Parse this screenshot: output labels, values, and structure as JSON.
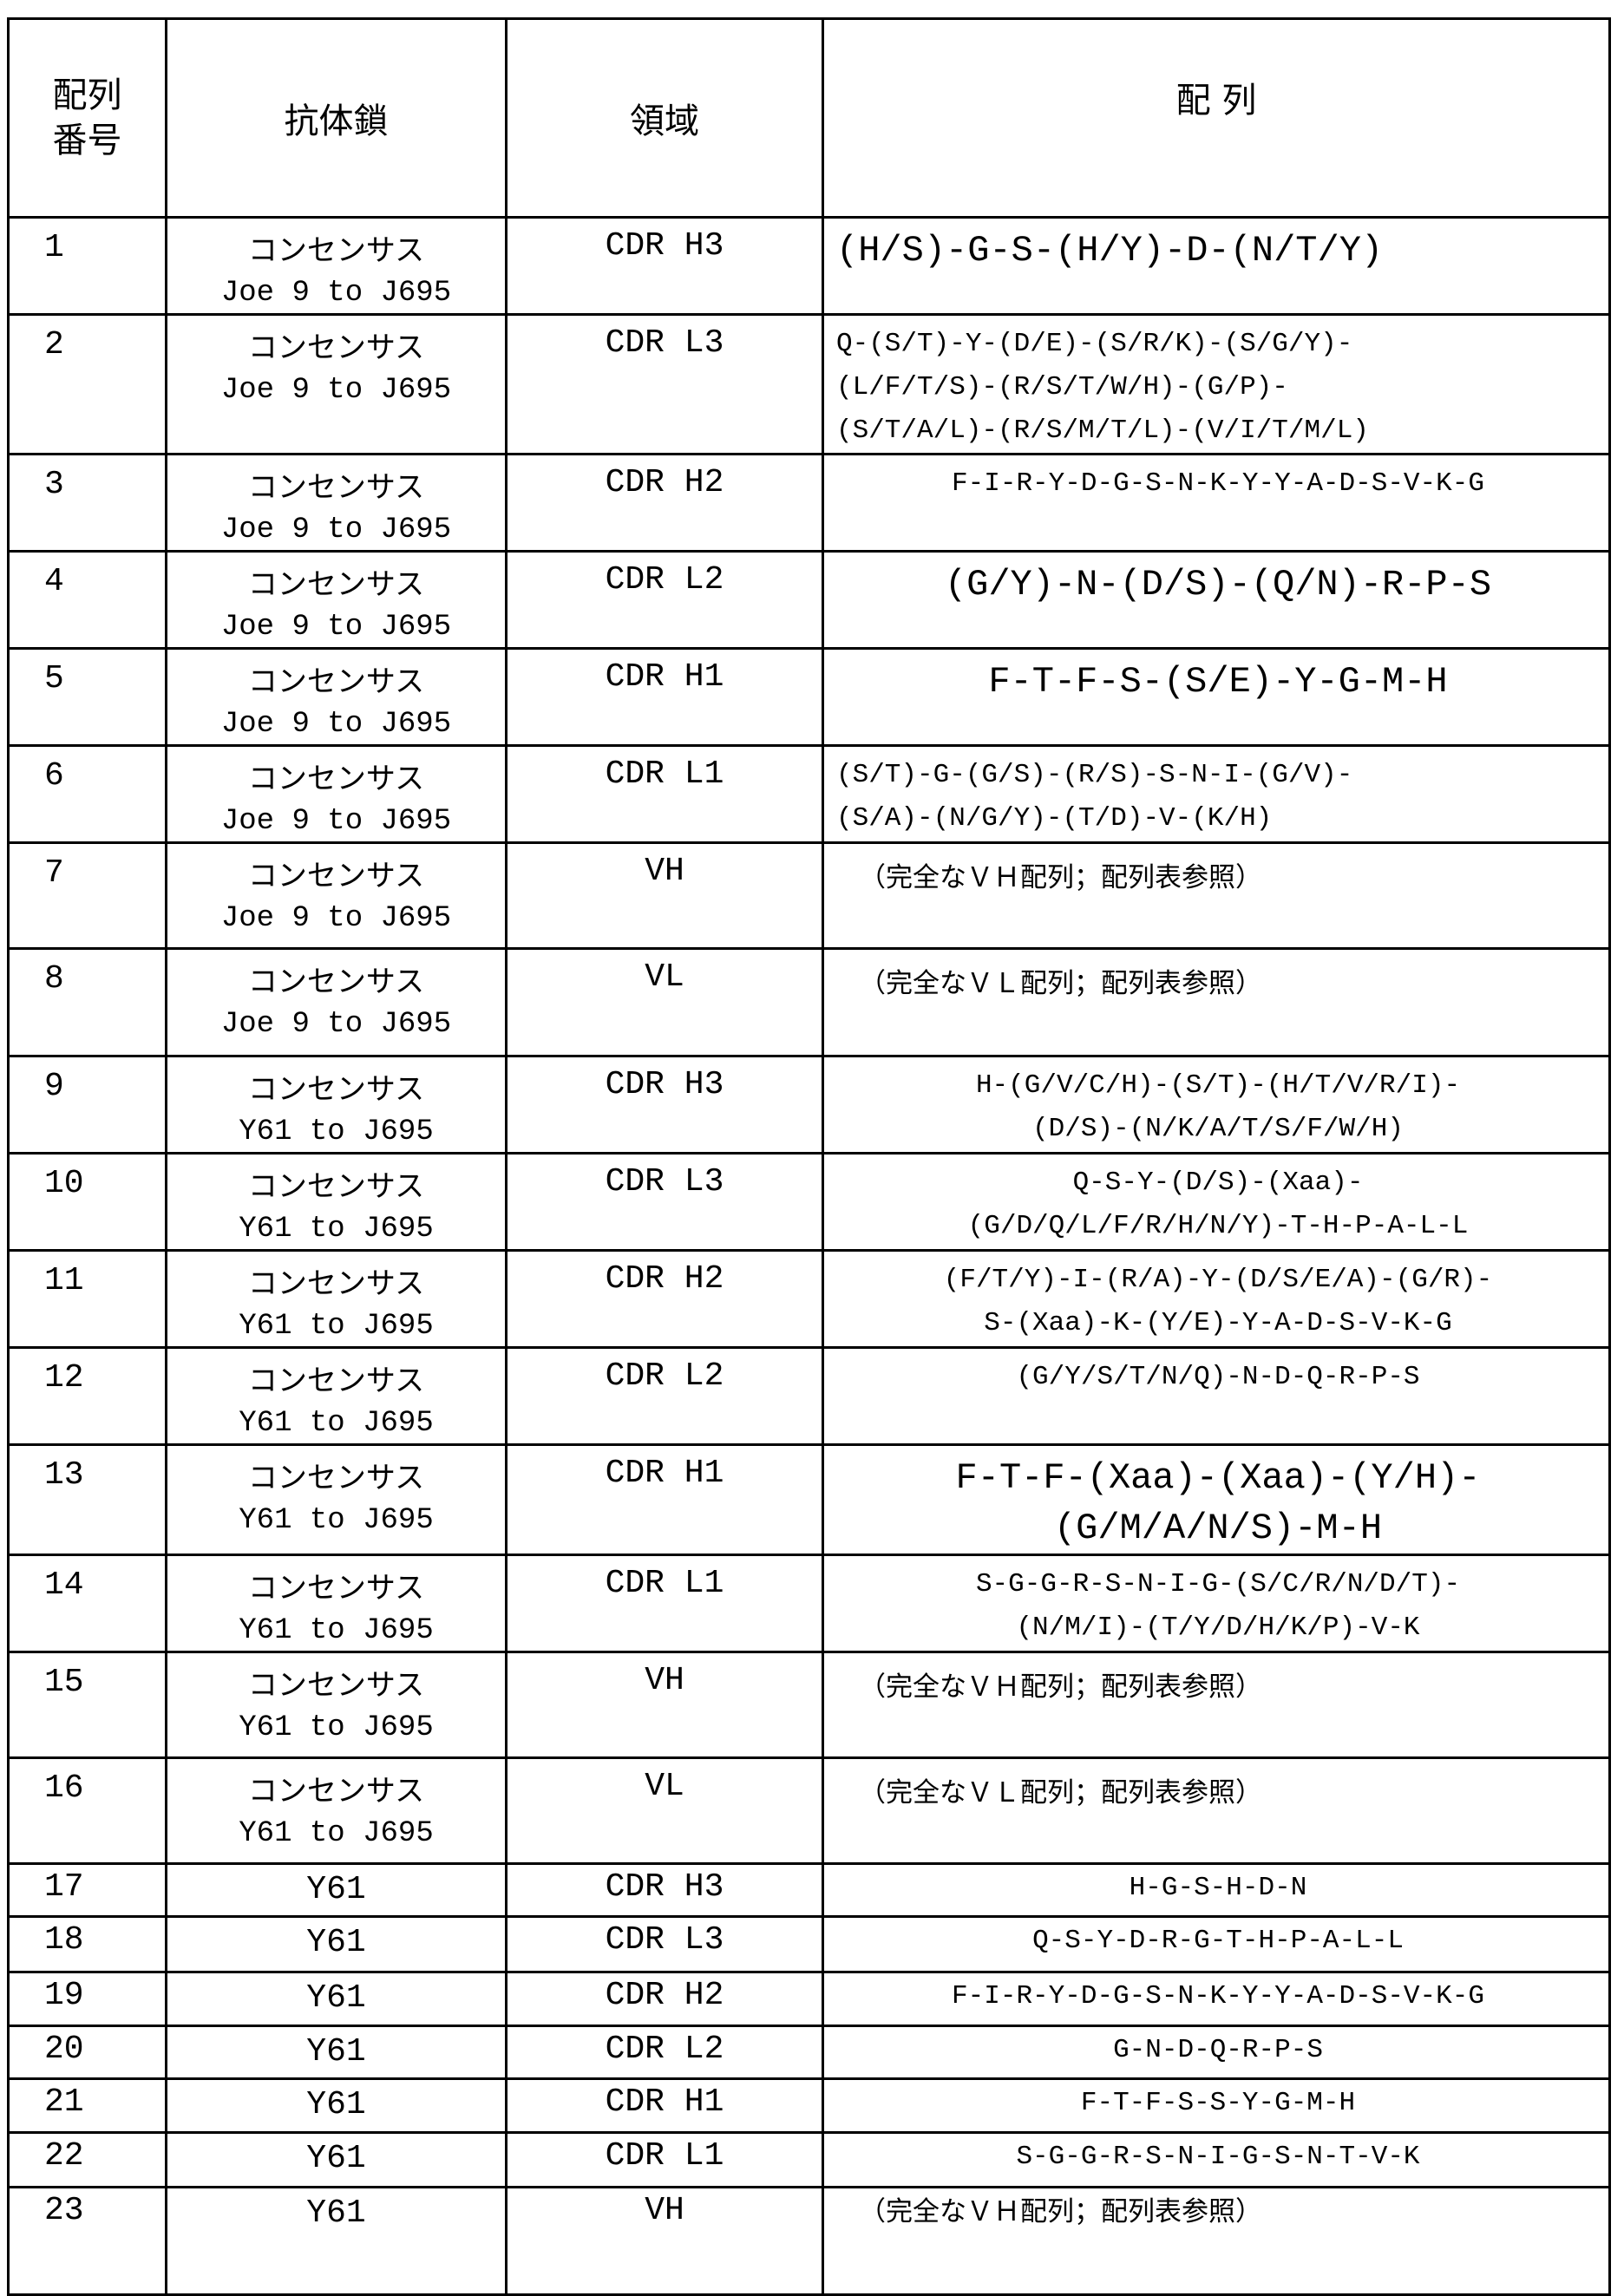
{
  "headers": {
    "seq_no": "配列\n番号",
    "chain": "抗体鎖",
    "region": "領域",
    "sequence": "配 列"
  },
  "rows": [
    {
      "no": "1",
      "chain": "コンセンサス",
      "chain2": "Joe 9 to J695",
      "region": "CDR H3",
      "seq": "(H/S)-G-S-(H/Y)-D-(N/T/Y)"
    },
    {
      "no": "2",
      "chain": "コンセンサス",
      "chain2": "Joe 9 to J695",
      "region": "CDR L3",
      "seq": "Q-(S/T)-Y-(D/E)-(S/R/K)-(S/G/Y)-\n(L/F/T/S)-(R/S/T/W/H)-(G/P)-\n(S/T/A/L)-(R/S/M/T/L)-(V/I/T/M/L)"
    },
    {
      "no": "3",
      "chain": "コンセンサス",
      "chain2": "Joe 9 to J695",
      "region": "CDR H2",
      "seq": "F-I-R-Y-D-G-S-N-K-Y-Y-A-D-S-V-K-G"
    },
    {
      "no": "4",
      "chain": "コンセンサス",
      "chain2": "Joe 9 to J695",
      "region": "CDR L2",
      "seq": "(G/Y)-N-(D/S)-(Q/N)-R-P-S"
    },
    {
      "no": "5",
      "chain": "コンセンサス",
      "chain2": "Joe 9 to J695",
      "region": "CDR H1",
      "seq": "F-T-F-S-(S/E)-Y-G-M-H"
    },
    {
      "no": "6",
      "chain": "コンセンサス",
      "chain2": "Joe 9 to J695",
      "region": "CDR L1",
      "seq": "(S/T)-G-(G/S)-(R/S)-S-N-I-(G/V)-\n(S/A)-(N/G/Y)-(T/D)-V-(K/H)"
    },
    {
      "no": "7",
      "chain": "コンセンサス",
      "chain2": "Joe 9 to J695",
      "region": "VH",
      "seq": "（完全なＶＨ配列；配列表参照）"
    },
    {
      "no": "8",
      "chain": "コンセンサス",
      "chain2": "Joe 9 to J695",
      "region": "VL",
      "seq": "（完全なＶＬ配列；配列表参照）"
    },
    {
      "no": "9",
      "chain": "コンセンサス",
      "chain2": "Y61 to J695",
      "region": "CDR H3",
      "seq": "H-(G/V/C/H)-(S/T)-(H/T/V/R/I)-\n(D/S)-(N/K/A/T/S/F/W/H)"
    },
    {
      "no": "10",
      "chain": "コンセンサス",
      "chain2": "Y61 to J695",
      "region": "CDR L3",
      "seq": "Q-S-Y-(D/S)-(Xaa)-\n(G/D/Q/L/F/R/H/N/Y)-T-H-P-A-L-L"
    },
    {
      "no": "11",
      "chain": "コンセンサス",
      "chain2": "Y61 to J695",
      "region": "CDR H2",
      "seq": "(F/T/Y)-I-(R/A)-Y-(D/S/E/A)-(G/R)-\nS-(Xaa)-K-(Y/E)-Y-A-D-S-V-K-G"
    },
    {
      "no": "12",
      "chain": "コンセンサス",
      "chain2": "Y61 to J695",
      "region": "CDR L2",
      "seq": "(G/Y/S/T/N/Q)-N-D-Q-R-P-S"
    },
    {
      "no": "13",
      "chain": "コンセンサス",
      "chain2": "Y61 to J695",
      "region": "CDR H1",
      "seq": "F-T-F-(Xaa)-(Xaa)-(Y/H)-\n(G/M/A/N/S)-M-H"
    },
    {
      "no": "14",
      "chain": "コンセンサス",
      "chain2": "Y61 to J695",
      "region": "CDR L1",
      "seq": "S-G-G-R-S-N-I-G-(S/C/R/N/D/T)-\n(N/M/I)-(T/Y/D/H/K/P)-V-K"
    },
    {
      "no": "15",
      "chain": "コンセンサス",
      "chain2": "Y61 to J695",
      "region": "VH",
      "seq": "（完全なＶＨ配列；配列表参照）"
    },
    {
      "no": "16",
      "chain": "コンセンサス",
      "chain2": "Y61 to J695",
      "region": "VL",
      "seq": "（完全なＶＬ配列；配列表参照）"
    },
    {
      "no": "17",
      "chain": "Y61",
      "chain2": "",
      "region": "CDR H3",
      "seq": "H-G-S-H-D-N"
    },
    {
      "no": "18",
      "chain": "Y61",
      "chain2": "",
      "region": "CDR L3",
      "seq": "Q-S-Y-D-R-G-T-H-P-A-L-L"
    },
    {
      "no": "19",
      "chain": "Y61",
      "chain2": "",
      "region": "CDR H2",
      "seq": "F-I-R-Y-D-G-S-N-K-Y-Y-A-D-S-V-K-G"
    },
    {
      "no": "20",
      "chain": "Y61",
      "chain2": "",
      "region": "CDR L2",
      "seq": "G-N-D-Q-R-P-S"
    },
    {
      "no": "21",
      "chain": "Y61",
      "chain2": "",
      "region": "CDR H1",
      "seq": "F-T-F-S-S-Y-G-M-H"
    },
    {
      "no": "22",
      "chain": "Y61",
      "chain2": "",
      "region": "CDR L1",
      "seq": "S-G-G-R-S-N-I-G-S-N-T-V-K"
    },
    {
      "no": "23",
      "chain": "Y61",
      "chain2": "",
      "region": "VH",
      "seq": "（完全なＶＨ配列；配列表参照）"
    }
  ]
}
